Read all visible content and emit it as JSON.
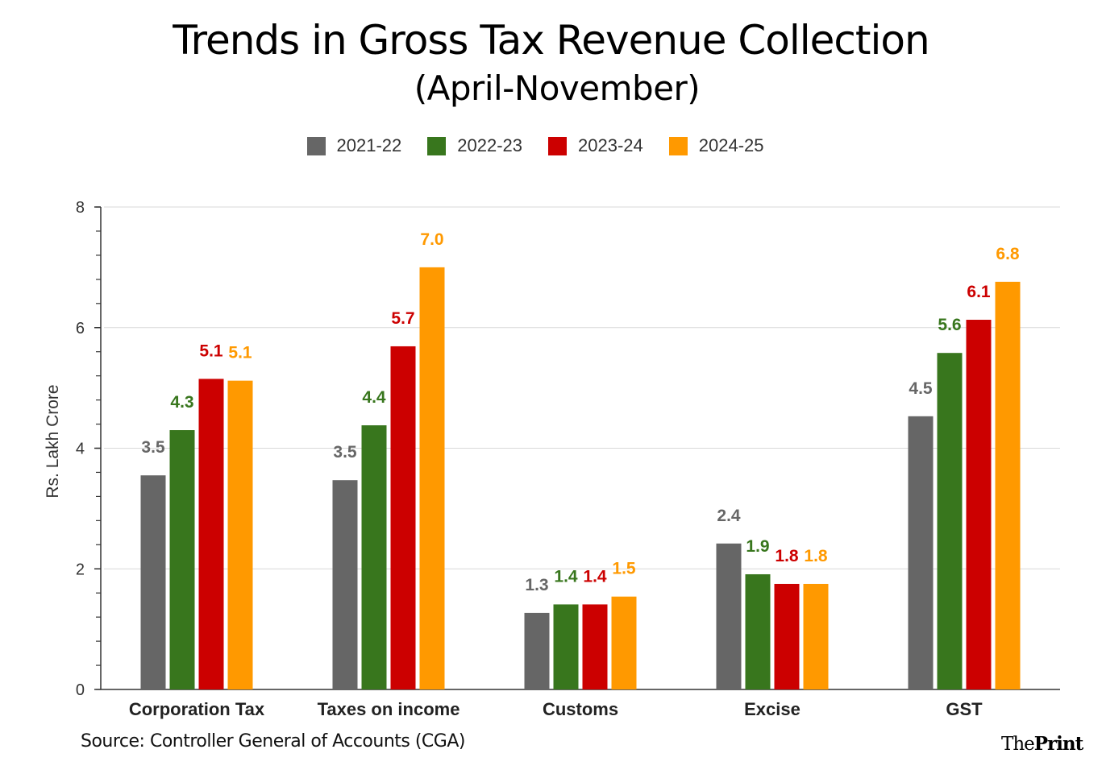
{
  "chart_data": {
    "type": "bar",
    "title": "Trends in Gross Tax Revenue Collection",
    "subtitle": "(April-November)",
    "xlabel": "",
    "ylabel": "Rs. Lakh Crore",
    "ylim": [
      0,
      8
    ],
    "yticks": [
      "0",
      "2",
      "4",
      "6",
      "8"
    ],
    "grid": true,
    "legend_position": "top-center",
    "categories": [
      "Corporation Tax",
      "Taxes on income",
      "Customs",
      "Excise",
      "GST"
    ],
    "series": [
      {
        "name": "2021-22",
        "color": "#666666",
        "values": [
          3.55,
          3.47,
          1.27,
          2.42,
          4.53
        ],
        "labels": [
          "3.5",
          "3.5",
          "1.3",
          "2.4",
          "4.5"
        ]
      },
      {
        "name": "2022-23",
        "color": "#38761d",
        "values": [
          4.3,
          4.38,
          1.41,
          1.91,
          5.58
        ],
        "labels": [
          "4.3",
          "4.4",
          "1.4",
          "1.9",
          "5.6"
        ]
      },
      {
        "name": "2023-24",
        "color": "#cc0000",
        "values": [
          5.15,
          5.69,
          1.41,
          1.75,
          6.13
        ],
        "labels": [
          "5.1",
          "5.7",
          "1.4",
          "1.8",
          "6.1"
        ]
      },
      {
        "name": "2024-25",
        "color": "#ff9900",
        "values": [
          5.12,
          7.0,
          1.54,
          1.75,
          6.76
        ],
        "labels": [
          "5.1",
          "7.0",
          "1.5",
          "1.8",
          "6.8"
        ]
      }
    ]
  },
  "label_colors": {
    "2021-22": "#666666",
    "2022-23": "#38761d",
    "2023-24": "#cc0000",
    "2024-25": "#ff9900"
  },
  "source": "Source: Controller General of Accounts (CGA)",
  "brand": {
    "the": "The",
    "print": "Print"
  }
}
